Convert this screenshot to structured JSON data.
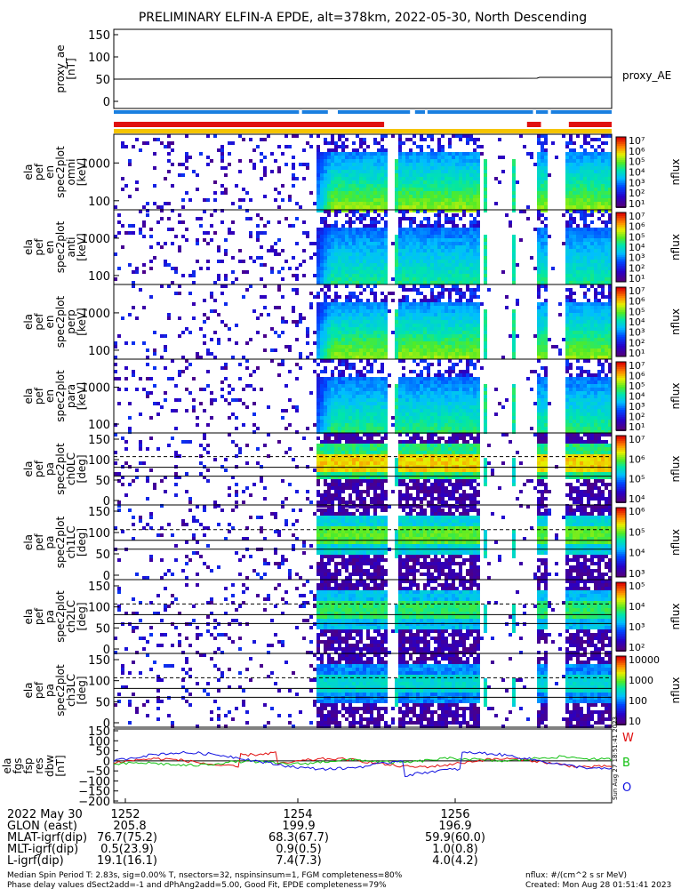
{
  "title": "PRELIMINARY ELFIN-A EPDE, alt=378km, 2022-05-30, North Descending",
  "chart_data": [
    {
      "type": "line",
      "ylabel": [
        "proxy_ae",
        "[nT]"
      ],
      "yticks": [
        "150",
        "100",
        "50",
        "0"
      ],
      "ylim": [
        0,
        150
      ],
      "series": [
        {
          "name": "proxy_AE",
          "x": [
            0,
            0.85,
            0.855,
            1
          ],
          "values": [
            50,
            52,
            54,
            54
          ]
        }
      ]
    },
    {
      "type": "heatmap",
      "ylabel": [
        "ela",
        "pef",
        "en",
        "spec2plot",
        "omni",
        "[keV]"
      ],
      "yticks": [
        "1000",
        "100"
      ],
      "cbar_ticks": [
        "10⁷",
        "10⁶",
        "10⁵",
        "10⁴",
        "10³",
        "10²",
        "10¹"
      ],
      "cbar_label": "nflux"
    },
    {
      "type": "heatmap",
      "ylabel": [
        "ela",
        "pef",
        "en",
        "spec2plot",
        "anti",
        "[keV]"
      ],
      "yticks": [
        "1000",
        "100"
      ],
      "cbar_ticks": [
        "10⁷",
        "10⁶",
        "10⁵",
        "10⁴",
        "10³",
        "10²",
        "10¹"
      ],
      "cbar_label": "nflux"
    },
    {
      "type": "heatmap",
      "ylabel": [
        "ela",
        "pef",
        "en",
        "spec2plot",
        "perp",
        "[keV]"
      ],
      "yticks": [
        "1000",
        "100"
      ],
      "cbar_ticks": [
        "10⁷",
        "10⁶",
        "10⁵",
        "10⁴",
        "10³",
        "10²",
        "10¹"
      ],
      "cbar_label": "nflux"
    },
    {
      "type": "heatmap",
      "ylabel": [
        "ela",
        "pef",
        "en",
        "spec2plot",
        "para",
        "[keV]"
      ],
      "yticks": [
        "1000",
        "100"
      ],
      "cbar_ticks": [
        "10⁷",
        "10⁶",
        "10⁵",
        "10⁴",
        "10³",
        "10²",
        "10¹"
      ],
      "cbar_label": "nflux"
    },
    {
      "type": "heatmap",
      "ylabel": [
        "ela",
        "pef",
        "pa",
        "spec2plot",
        "ch0LC",
        "[deg]"
      ],
      "yticks": [
        "150",
        "100",
        "50",
        "0"
      ],
      "cbar_ticks": [
        "10⁷",
        "10⁶",
        "10⁵",
        "10⁴"
      ],
      "cbar_label": "nflux"
    },
    {
      "type": "heatmap",
      "ylabel": [
        "ela",
        "pef",
        "pa",
        "spec2plot",
        "ch1LC",
        "[deg]"
      ],
      "yticks": [
        "150",
        "100",
        "50",
        "0"
      ],
      "cbar_ticks": [
        "10⁶",
        "10⁵",
        "10⁴",
        "10³"
      ],
      "cbar_label": "nflux"
    },
    {
      "type": "heatmap",
      "ylabel": [
        "ela",
        "pef",
        "pa",
        "spec2plot",
        "ch2LC",
        "[deg]"
      ],
      "yticks": [
        "150",
        "100",
        "50",
        "0"
      ],
      "cbar_ticks": [
        "10⁵",
        "10⁴",
        "10³",
        "10²"
      ],
      "cbar_label": "nflux"
    },
    {
      "type": "heatmap",
      "ylabel": [
        "ela",
        "pef",
        "pa",
        "spec2plot",
        "ch3LC",
        "[deg]"
      ],
      "yticks": [
        "150",
        "100",
        "50",
        "0"
      ],
      "cbar_ticks": [
        "10000",
        "1000",
        "100",
        "10"
      ],
      "cbar_label": "nflux"
    },
    {
      "type": "line",
      "ylabel": [
        "ela",
        "fgs",
        "fsp",
        "res",
        "dbw",
        "[nT]"
      ],
      "yticks": [
        "150",
        "100",
        "50",
        "0",
        "−50",
        "−100",
        "−150",
        "−200"
      ],
      "ylim": [
        -200,
        150
      ],
      "series": [
        {
          "name": "W",
          "color": "#e01010"
        },
        {
          "name": "B",
          "color": "#10c010"
        },
        {
          "name": "O",
          "color": "#1010e0"
        }
      ]
    }
  ],
  "time_axis": {
    "labels": [
      "1252",
      "1254",
      "1256"
    ]
  },
  "ephemeris": {
    "rows": [
      {
        "label": "2022 May 30",
        "values": [
          "",
          "",
          ""
        ]
      },
      {
        "label": "GLON (east)",
        "values": [
          "205.8",
          "199.9",
          "196.9"
        ]
      },
      {
        "label": "MLAT-igrf(dip)",
        "values": [
          "76.7(75.2)",
          "68.3(67.7)",
          "59.9(60.0)"
        ]
      },
      {
        "label": "MLT-igrf(dip)",
        "values": [
          "0.5(23.9)",
          "0.9(0.5)",
          "1.0(0.8)"
        ]
      },
      {
        "label": "L-igrf(dip)",
        "values": [
          "19.1(16.1)",
          "7.4(7.3)",
          "4.0(4.2)"
        ]
      }
    ]
  },
  "footer": {
    "line1": "Median Spin Period T: 2.83s, sig=0.00% T, nsectors=32, nspinsinsum=1, FGM completeness=80%",
    "line2": "Phase delay values dSect2add=-1 and dPhAng2add=5.00, Good Fit, EPDE completeness=79%",
    "units": "nflux: #/(cm^2 s sr MeV)",
    "created": "Created: Mon Aug 28 01:51:41 2023",
    "side_stamp": "Sun Aug 27 18:51:41 2023"
  },
  "colors": {
    "status_blue": "#1a7fe0",
    "status_red": "#e01010",
    "status_yellow": "#f5c400"
  }
}
